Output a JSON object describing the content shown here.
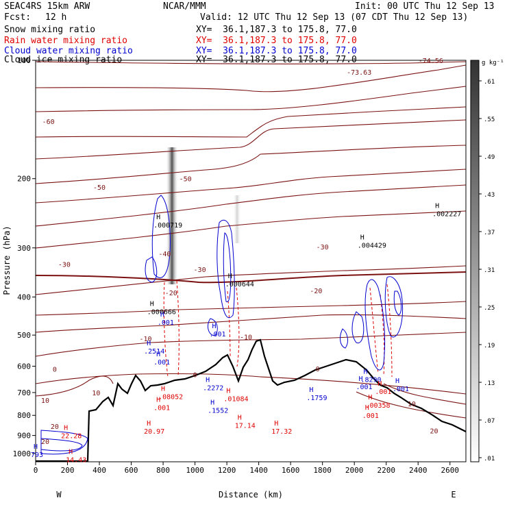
{
  "header": {
    "model": "SEAC4RS 15km ARW",
    "org": "NCAR/MMM",
    "init": "Init: 00 UTC Thu 12 Sep 13",
    "fcst_label": "Fcst:",
    "fcst_value": "12 h",
    "valid": "Valid: 12 UTC Thu 12 Sep 13 (07 CDT Thu 12 Sep 13)"
  },
  "fields": [
    {
      "name": "Snow mixing ratio",
      "xy": "XY=  36.1,187.3 to 175.8, 77.0",
      "color": "#000000"
    },
    {
      "name": "Rain water mixing ratio",
      "xy": "XY=  36.1,187.3 to 175.8, 77.0",
      "color": "#e00000"
    },
    {
      "name": "Cloud water mixing ratio",
      "xy": "XY=  36.1,187.3 to 175.8, 77.0",
      "color": "#0000d0"
    },
    {
      "name": "Cloud ice mixing ratio",
      "xy": "XY=  36.1,187.3 to 175.8, 77.0",
      "color": "#000000"
    }
  ],
  "colors": {
    "isotherm": "#7a1010",
    "rain": "#e00000",
    "cloud": "#0000d0",
    "terrain": "#000000"
  },
  "chart_data": {
    "type": "cross-section",
    "xlabel": "Distance (km)",
    "ylabel": "Pressure (hPa)",
    "xlim": [
      0,
      2700
    ],
    "ylim": [
      1050,
      100
    ],
    "yscale": "log",
    "xticks": [
      0,
      200,
      400,
      600,
      800,
      1000,
      1200,
      1400,
      1600,
      1800,
      2000,
      2200,
      2400,
      2600
    ],
    "yticks": [
      100,
      200,
      300,
      400,
      500,
      600,
      700,
      800,
      900,
      1000
    ],
    "x_end_labels": {
      "left": "W",
      "right": "E"
    },
    "colorbar": {
      "unit": "g kg⁻¹",
      "ticks": [
        ".01",
        ".07",
        ".13",
        ".19",
        ".25",
        ".31",
        ".37",
        ".43",
        ".49",
        ".55",
        ".61"
      ]
    },
    "isotherm_labels": [
      {
        "text": "-74.56",
        "x": 2480,
        "p": 100
      },
      {
        "text": "-73.63",
        "x": 2030,
        "p": 107
      },
      {
        "text": "-60",
        "x": 80,
        "p": 143
      },
      {
        "text": "-50",
        "x": 400,
        "p": 210
      },
      {
        "text": "-50",
        "x": 940,
        "p": 200
      },
      {
        "text": "-40",
        "x": 810,
        "p": 310
      },
      {
        "text": "-30",
        "x": 180,
        "p": 330
      },
      {
        "text": "-30",
        "x": 1030,
        "p": 340
      },
      {
        "text": "-30",
        "x": 1800,
        "p": 298
      },
      {
        "text": "-20",
        "x": 850,
        "p": 390
      },
      {
        "text": "-20",
        "x": 1760,
        "p": 385
      },
      {
        "text": "-10",
        "x": 690,
        "p": 510
      },
      {
        "text": "-10",
        "x": 1320,
        "p": 505
      },
      {
        "text": "0",
        "x": 120,
        "p": 610
      },
      {
        "text": "0",
        "x": 1000,
        "p": 630
      },
      {
        "text": "0",
        "x": 1770,
        "p": 608
      },
      {
        "text": "10",
        "x": 60,
        "p": 732
      },
      {
        "text": "10",
        "x": 380,
        "p": 700
      },
      {
        "text": "10",
        "x": 2360,
        "p": 746
      },
      {
        "text": "20",
        "x": 120,
        "p": 852
      },
      {
        "text": "20",
        "x": 60,
        "p": 930
      },
      {
        "text": "20",
        "x": 2500,
        "p": 875
      }
    ],
    "extrema": [
      {
        "text": ".000719",
        "x": 800,
        "p": 262,
        "color": "black"
      },
      {
        "text": ".000644",
        "x": 1250,
        "p": 370,
        "color": "black"
      },
      {
        "text": ".000666",
        "x": 760,
        "p": 435,
        "color": "black"
      },
      {
        "text": ".004429",
        "x": 2080,
        "p": 295,
        "color": "black"
      },
      {
        "text": ".002227",
        "x": 2550,
        "p": 245,
        "color": "black"
      },
      {
        "text": ".2514",
        "x": 740,
        "p": 548,
        "color": "blue"
      },
      {
        "text": ".001",
        "x": 800,
        "p": 585,
        "color": "blue"
      },
      {
        "text": ".001",
        "x": 825,
        "p": 463,
        "color": "blue"
      },
      {
        "text": ".001",
        "x": 1150,
        "p": 496,
        "color": "blue"
      },
      {
        "text": ".2272",
        "x": 1110,
        "p": 680,
        "color": "blue"
      },
      {
        "text": ".1552",
        "x": 1140,
        "p": 775,
        "color": "blue"
      },
      {
        "text": ".1759",
        "x": 1760,
        "p": 720,
        "color": "blue"
      },
      {
        "text": ".8290",
        "x": 2100,
        "p": 648,
        "color": "blue"
      },
      {
        "text": ".001",
        "x": 2070,
        "p": 675,
        "color": "blue"
      },
      {
        "text": ".001",
        "x": 2300,
        "p": 683,
        "color": "blue"
      },
      {
        "text": ".08052",
        "x": 830,
        "p": 716,
        "color": "red"
      },
      {
        "text": ".001",
        "x": 800,
        "p": 763,
        "color": "red"
      },
      {
        "text": ".01084",
        "x": 1240,
        "p": 725,
        "color": "red"
      },
      {
        "text": ".00358",
        "x": 2130,
        "p": 753,
        "color": "red"
      },
      {
        "text": ".001",
        "x": 2190,
        "p": 695,
        "color": "red"
      },
      {
        "text": ".001",
        "x": 2110,
        "p": 799,
        "color": "red"
      },
      {
        "text": "20.97",
        "x": 740,
        "p": 877,
        "color": "red"
      },
      {
        "text": "17.14",
        "x": 1310,
        "p": 847,
        "color": "red"
      },
      {
        "text": "17.32",
        "x": 1540,
        "p": 877,
        "color": "red"
      },
      {
        "text": "22.28",
        "x": 220,
        "p": 900,
        "color": "red"
      },
      {
        "text": "14.43",
        "x": 250,
        "p": 1035,
        "color": "red"
      },
      {
        "text": "793",
        "x": 30,
        "p": 1005,
        "color": "blue"
      }
    ]
  }
}
